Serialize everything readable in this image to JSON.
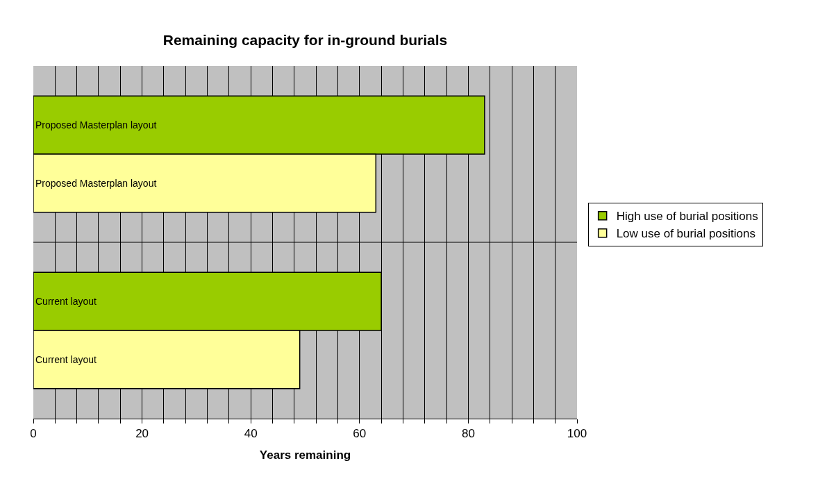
{
  "chart_data": {
    "type": "bar",
    "orientation": "horizontal",
    "title": "Remaining capacity for in-ground burials",
    "xlabel": "Years remaining",
    "categories": [
      "Proposed Masterplan layout",
      "Current layout"
    ],
    "series": [
      {
        "name": "High use of burial positions",
        "color": "#99cc00",
        "values": [
          83,
          64
        ]
      },
      {
        "name": "Low use of burial positions",
        "color": "#ffff99",
        "values": [
          63,
          49
        ]
      }
    ],
    "xlim": [
      0,
      100
    ],
    "xticks": [
      0,
      {
        "value": 4,
        "label": null
      },
      {
        "value": 8,
        "label": null
      },
      {
        "value": 12,
        "label": null
      },
      {
        "value": 16,
        "label": null
      },
      20,
      {
        "value": 24,
        "label": null
      },
      {
        "value": 28,
        "label": null
      },
      {
        "value": 32,
        "label": null
      },
      {
        "value": 36,
        "label": null
      },
      40,
      {
        "value": 44,
        "label": null
      },
      {
        "value": 48,
        "label": null
      },
      {
        "value": 52,
        "label": null
      },
      {
        "value": 56,
        "label": null
      },
      60,
      {
        "value": 64,
        "label": null
      },
      {
        "value": 68,
        "label": null
      },
      {
        "value": 72,
        "label": null
      },
      {
        "value": 76,
        "label": null
      },
      80,
      {
        "value": 84,
        "label": null
      },
      {
        "value": 88,
        "label": null
      },
      {
        "value": 92,
        "label": null
      },
      {
        "value": 96,
        "label": null
      },
      100
    ],
    "grid": true,
    "legend": "right"
  }
}
